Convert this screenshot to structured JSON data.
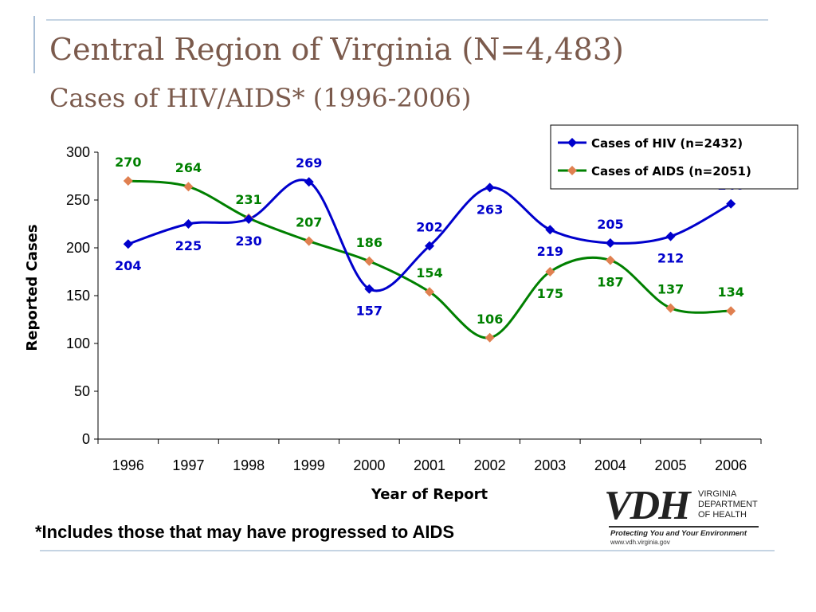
{
  "slide": {
    "title": "Central Region of Virginia (N=4,483)",
    "subtitle": "Cases of HIV/AIDS* (1996-2006)",
    "footnote": "*Includes those that may have progressed to AIDS"
  },
  "logo": {
    "mark": "VDH",
    "org_lines": [
      "VIRGINIA",
      "DEPARTMENT",
      "OF HEALTH"
    ],
    "tagline": "Protecting You and Your Environment",
    "url": "www.vdh.virginia.gov"
  },
  "chart_data": {
    "type": "line",
    "categories": [
      "1996",
      "1997",
      "1998",
      "1999",
      "2000",
      "2001",
      "2002",
      "2003",
      "2004",
      "2005",
      "2006"
    ],
    "series": [
      {
        "name": "Cases of HIV (n=2432)",
        "color": "#0000cc",
        "marker": "diamond",
        "values": [
          204,
          225,
          230,
          269,
          157,
          202,
          263,
          219,
          205,
          212,
          246
        ]
      },
      {
        "name": "Cases of AIDS (n=2051)",
        "color": "#008000",
        "marker_color": "#e08050",
        "marker": "diamond",
        "values": [
          270,
          264,
          231,
          207,
          186,
          154,
          106,
          175,
          187,
          137,
          134
        ]
      }
    ],
    "xlabel": "Year of Report",
    "ylabel": "Reported Cases",
    "ylim": [
      0,
      300
    ],
    "yticks": [
      0,
      50,
      100,
      150,
      200,
      250,
      300
    ],
    "smooth": true,
    "grid": false,
    "legend_position": "top-right",
    "data_labels": true
  }
}
